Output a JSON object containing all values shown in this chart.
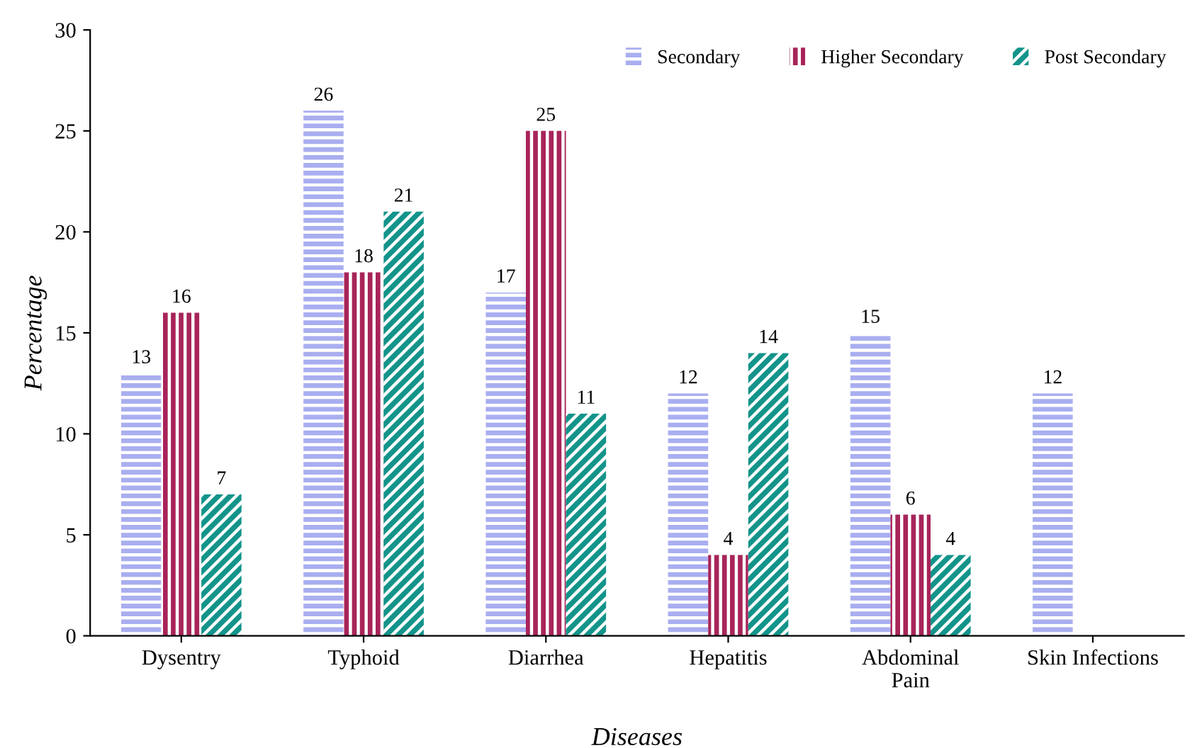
{
  "chart_data": {
    "type": "bar",
    "xlabel": "Diseases",
    "ylabel": "Percentage",
    "categories": [
      "Dysentry",
      "Typhoid",
      "Diarrhea",
      "Hepatitis",
      "Abdominal\nPain",
      "Skin Infections"
    ],
    "series": [
      {
        "name": "Secondary",
        "color": "#a9aef0",
        "values": [
          13,
          26,
          17,
          12,
          15,
          12
        ]
      },
      {
        "name": "Higher Secondary",
        "color": "#a8245a",
        "values": [
          16,
          18,
          25,
          4,
          6,
          null
        ]
      },
      {
        "name": "Post Secondary",
        "color": "#13948a",
        "values": [
          7,
          21,
          11,
          14,
          4,
          null
        ]
      }
    ],
    "ylim": [
      0,
      30
    ],
    "yticks": [
      0,
      5,
      10,
      15,
      20,
      25,
      30
    ],
    "grid": false,
    "legend": "top right",
    "data_labels": true
  }
}
